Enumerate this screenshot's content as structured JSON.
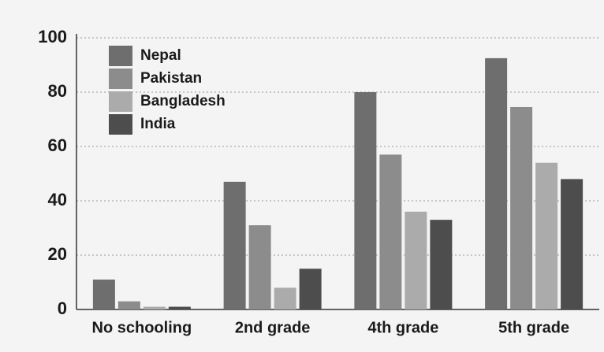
{
  "chart_data": {
    "type": "bar",
    "categories": [
      "No schooling",
      "2nd grade",
      "4th grade",
      "5th grade"
    ],
    "series": [
      {
        "name": "Nepal",
        "color": "#6e6e6e",
        "values": [
          11,
          47,
          80,
          92.5
        ]
      },
      {
        "name": "Pakistan",
        "color": "#8c8c8c",
        "values": [
          3,
          31,
          57,
          74.5
        ]
      },
      {
        "name": "Bangladesh",
        "color": "#ababab",
        "values": [
          1,
          8,
          36,
          54
        ]
      },
      {
        "name": "India",
        "color": "#4d4d4d",
        "values": [
          1,
          15,
          33,
          48
        ]
      }
    ],
    "ylim": [
      0,
      100
    ],
    "yticks": [
      0,
      20,
      40,
      60,
      80,
      100
    ],
    "grid": true,
    "legend": "upper left"
  }
}
